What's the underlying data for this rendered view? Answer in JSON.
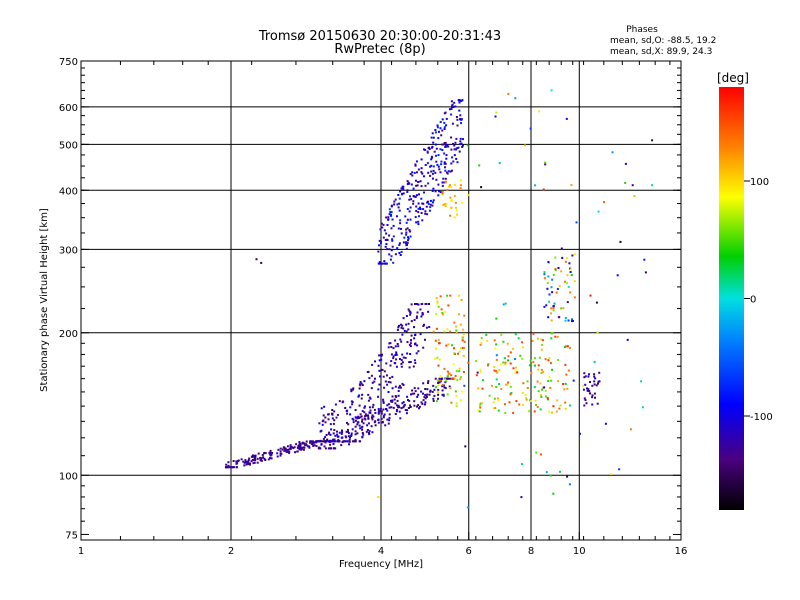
{
  "header": {
    "title_line1": "Tromsø 20150630 20:30:00-20:31:43",
    "title_line2": "RwPretec (8p)",
    "stats_title": "Phases",
    "stats_o": "mean, sd,O: -88.5, 19.2",
    "stats_x": "mean, sd,X:  89.9, 24.3"
  },
  "chart_data": {
    "type": "scatter",
    "xlabel": "Frequency [MHz]",
    "ylabel": "Stationary phase Virtual Height [km]",
    "xscale": "log",
    "yscale": "log",
    "xlim": [
      1,
      16
    ],
    "ylim": [
      73,
      750
    ],
    "x_ticks": [
      1,
      2,
      4,
      6,
      8,
      10,
      16
    ],
    "x_tick_labels": [
      "1",
      "2",
      "4",
      "6",
      "8",
      "10",
      "16"
    ],
    "y_ticks": [
      75,
      100,
      200,
      300,
      400,
      500,
      600,
      750
    ],
    "y_tick_labels": [
      "75",
      "100",
      "200",
      "300",
      "400",
      "500",
      "600",
      "750"
    ],
    "grid": true,
    "colorbar": {
      "label": "[deg]",
      "range": [
        -180,
        180
      ],
      "ticks": [
        100,
        0,
        -100
      ],
      "tick_labels": [
        "100",
        "0",
        "-100"
      ]
    },
    "clusters": [
      {
        "name": "E trace",
        "n": 180,
        "x": [
          1.95,
          3.0
        ],
        "y": [
          104,
          118
        ],
        "c": [
          -150,
          -110
        ]
      },
      {
        "name": "low F trace",
        "n": 220,
        "x": [
          3.0,
          5.6
        ],
        "y": [
          114,
          160
        ],
        "c": [
          -150,
          -100
        ]
      },
      {
        "name": "F1 cusp",
        "n": 320,
        "x": [
          3.0,
          5.0
        ],
        "y": [
          118,
          230
        ],
        "c": [
          -150,
          -90
        ]
      },
      {
        "name": "F2 O-trace",
        "n": 340,
        "x": [
          3.95,
          5.85
        ],
        "y": [
          280,
          620
        ],
        "c": [
          -140,
          -70
        ]
      },
      {
        "name": "F2 upper yellow",
        "n": 30,
        "x": [
          5.3,
          5.85
        ],
        "y": [
          350,
          420
        ],
        "c": [
          80,
          140
        ]
      },
      {
        "name": "X-trace low",
        "n": 90,
        "x": [
          5.1,
          5.9
        ],
        "y": [
          140,
          240
        ],
        "c": [
          40,
          160
        ]
      },
      {
        "name": "X-trace mid",
        "n": 160,
        "x": [
          6.2,
          9.6
        ],
        "y": [
          135,
          200
        ],
        "c": [
          20,
          170
        ]
      },
      {
        "name": "X-trace upper",
        "n": 60,
        "x": [
          8.5,
          9.8
        ],
        "y": [
          210,
          300
        ],
        "c": [
          -150,
          150
        ]
      },
      {
        "name": "X-trace right",
        "n": 35,
        "x": [
          10.2,
          11.0
        ],
        "y": [
          140,
          165
        ],
        "c": [
          -150,
          -100
        ]
      },
      {
        "name": "scatter",
        "n": 70,
        "x": [
          5.8,
          14.0
        ],
        "y": [
          85,
          660
        ],
        "c": [
          -180,
          180
        ]
      }
    ],
    "isolated_points": [
      {
        "x": 2.25,
        "y": 286,
        "c": -150
      },
      {
        "x": 2.3,
        "y": 281,
        "c": -150
      },
      {
        "x": 3.95,
        "y": 90,
        "c": 100
      },
      {
        "x": 8.8,
        "y": 650,
        "c": 0
      },
      {
        "x": 14.0,
        "y": 510,
        "c": -150
      },
      {
        "x": 12.8,
        "y": 410,
        "c": -120
      },
      {
        "x": 14.0,
        "y": 410,
        "c": 10
      }
    ]
  }
}
